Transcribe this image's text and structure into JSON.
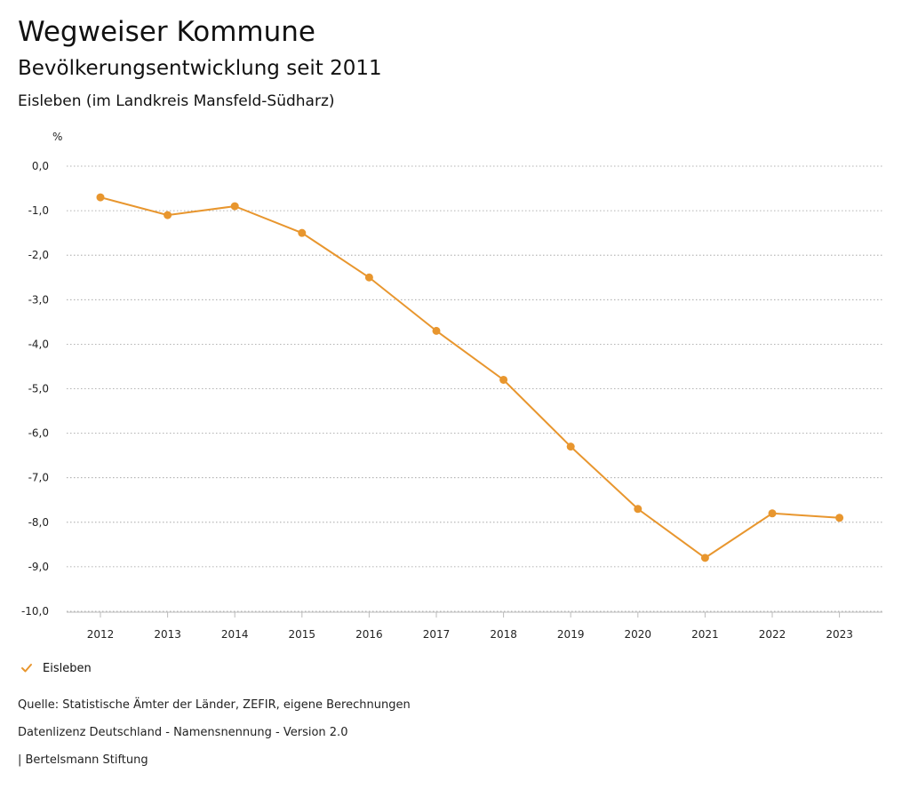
{
  "header": {
    "title": "Wegweiser Kommune",
    "subtitle": "Bevölkerungsentwicklung seit 2011",
    "region": "Eisleben (im Landkreis Mansfeld-Südharz)"
  },
  "chart_data": {
    "type": "line",
    "ylabel": "%",
    "x": [
      "2012",
      "2013",
      "2014",
      "2015",
      "2016",
      "2017",
      "2018",
      "2019",
      "2020",
      "2021",
      "2022",
      "2023"
    ],
    "series": [
      {
        "name": "Eisleben",
        "color": "#E8962E",
        "values": [
          -0.7,
          -1.1,
          -0.9,
          -1.5,
          -2.5,
          -3.7,
          -4.8,
          -6.3,
          -7.7,
          -8.8,
          -7.8,
          -7.9
        ]
      }
    ],
    "ylim": [
      -10,
      0
    ],
    "yticks": [
      "0,0",
      "-1,0",
      "-2,0",
      "-3,0",
      "-4,0",
      "-5,0",
      "-6,0",
      "-7,0",
      "-8,0",
      "-9,0",
      "-10,0"
    ],
    "ytick_values": [
      0,
      -1,
      -2,
      -3,
      -4,
      -5,
      -6,
      -7,
      -8,
      -9,
      -10
    ],
    "grid": true,
    "legend": "bottom-left"
  },
  "legend": {
    "label": "Eisleben",
    "icon": "check-icon"
  },
  "footer": {
    "source": "Quelle: Statistische Ämter der Länder, ZEFIR, eigene Berechnungen",
    "license": "Datenlizenz Deutschland - Namensnennung - Version 2.0",
    "publisher": "| Bertelsmann Stiftung"
  }
}
